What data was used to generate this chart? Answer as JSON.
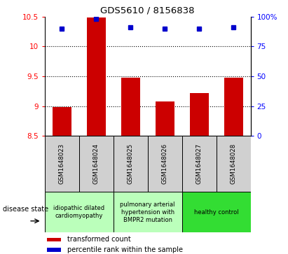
{
  "title": "GDS5610 / 8156838",
  "samples": [
    "GSM1648023",
    "GSM1648024",
    "GSM1648025",
    "GSM1648026",
    "GSM1648027",
    "GSM1648028"
  ],
  "bar_values": [
    8.98,
    10.48,
    9.48,
    9.08,
    9.22,
    9.48
  ],
  "dot_values": [
    90,
    98,
    91,
    90,
    90,
    91
  ],
  "bar_bottom": 8.5,
  "ylim_left": [
    8.5,
    10.5
  ],
  "ylim_right": [
    0,
    100
  ],
  "yticks_left": [
    8.5,
    9.0,
    9.5,
    10.0,
    10.5
  ],
  "ytick_labels_left": [
    "8.5",
    "9",
    "9.5",
    "10",
    "10.5"
  ],
  "yticks_right": [
    0,
    25,
    50,
    75,
    100
  ],
  "ytick_labels_right": [
    "0",
    "25",
    "50",
    "75",
    "100%"
  ],
  "bar_color": "#cc0000",
  "dot_color": "#0000cc",
  "dotted_lines": [
    9.0,
    9.5,
    10.0
  ],
  "disease_groups": [
    {
      "label": "idiopathic dilated\ncardiomyopathy",
      "start": 0,
      "end": 2,
      "color": "#bbffbb"
    },
    {
      "label": "pulmonary arterial\nhypertension with\nBMPR2 mutation",
      "start": 2,
      "end": 4,
      "color": "#bbffbb"
    },
    {
      "label": "healthy control",
      "start": 4,
      "end": 6,
      "color": "#33dd33"
    }
  ],
  "legend_bar_label": "transformed count",
  "legend_dot_label": "percentile rank within the sample",
  "disease_state_label": "disease state",
  "plot_bg": "#ffffff",
  "sample_box_color": "#d0d0d0"
}
